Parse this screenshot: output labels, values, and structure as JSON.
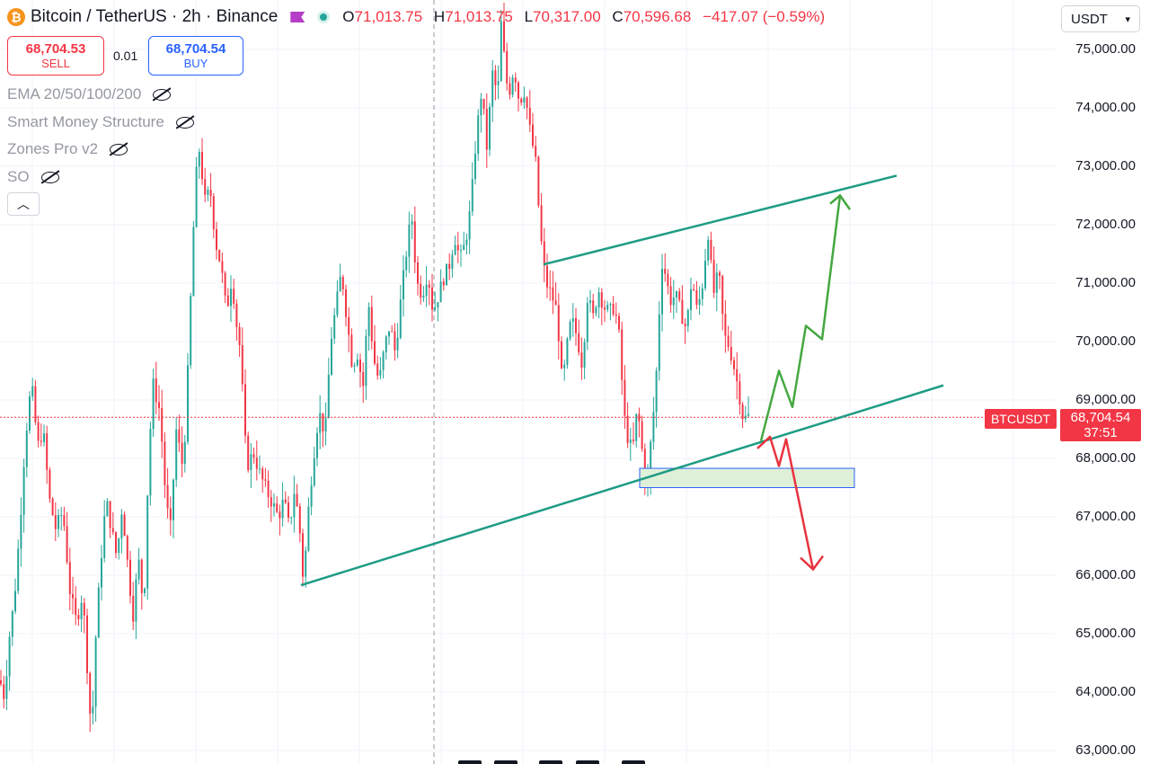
{
  "header": {
    "title": "Bitcoin / TetherUS · 2h · Binance",
    "ohlc": [
      {
        "k": "O",
        "v": "71,013.75"
      },
      {
        "k": "H",
        "v": "71,013.75"
      },
      {
        "k": "L",
        "v": "70,317.00"
      },
      {
        "k": "C",
        "v": "70,596.68"
      }
    ],
    "change": "−417.07 (−0.59%)"
  },
  "trade": {
    "sell_price": "68,704.53",
    "sell_label": "SELL",
    "quantity": "0.01",
    "buy_price": "68,704.54",
    "buy_label": "BUY"
  },
  "indicators": [
    "EMA 20/50/100/200",
    "Smart Money Structure",
    "Zones Pro v2",
    "SO"
  ],
  "currency": {
    "value": "USDT"
  },
  "price_tag": {
    "symbol": "BTCUSDT",
    "price": "68,704.54",
    "countdown": "37:51"
  },
  "colors": {
    "up": "#26a69a",
    "down": "#f23645",
    "trendline": "#1e9c84",
    "zone_fill": "#dff0d8",
    "zone_border": "#2962ff",
    "arrow_up": "#43a83f",
    "arrow_down": "#e8333f"
  },
  "chart_data": {
    "type": "candlestick",
    "ylim": [
      62800,
      75700
    ],
    "y_ticks": [
      63000,
      64000,
      65000,
      66000,
      67000,
      68000,
      69000,
      70000,
      71000,
      72000,
      73000,
      74000,
      75000
    ],
    "y_tick_labels": [
      "63,000.00",
      "64,000.00",
      "65,000.00",
      "66,000.00",
      "67,000.00",
      "68,000.00",
      "69,000.00",
      "70,000.00",
      "71,000.00",
      "72,000.00",
      "73,000.00",
      "74,000.00",
      "75,000.00"
    ],
    "current_price": 68704.54,
    "path": [
      [
        0,
        64200
      ],
      [
        5,
        63900
      ],
      [
        10,
        64900
      ],
      [
        16,
        65600
      ],
      [
        22,
        66800
      ],
      [
        28,
        68300
      ],
      [
        35,
        69300
      ],
      [
        42,
        68200
      ],
      [
        48,
        68500
      ],
      [
        55,
        67300
      ],
      [
        62,
        66800
      ],
      [
        70,
        67100
      ],
      [
        78,
        65700
      ],
      [
        85,
        65200
      ],
      [
        92,
        65700
      ],
      [
        98,
        64200
      ],
      [
        102,
        63200
      ],
      [
        106,
        64800
      ],
      [
        112,
        66200
      ],
      [
        118,
        67300
      ],
      [
        124,
        66800
      ],
      [
        130,
        66300
      ],
      [
        136,
        67200
      ],
      [
        142,
        66200
      ],
      [
        148,
        65300
      ],
      [
        154,
        66300
      ],
      [
        160,
        65400
      ],
      [
        165,
        67800
      ],
      [
        170,
        69300
      ],
      [
        178,
        68800
      ],
      [
        185,
        67200
      ],
      [
        190,
        66800
      ],
      [
        196,
        68500
      ],
      [
        204,
        67800
      ],
      [
        210,
        69800
      ],
      [
        214,
        71500
      ],
      [
        218,
        72800
      ],
      [
        222,
        73300
      ],
      [
        228,
        72400
      ],
      [
        234,
        72600
      ],
      [
        240,
        71700
      ],
      [
        246,
        71300
      ],
      [
        252,
        70500
      ],
      [
        258,
        71100
      ],
      [
        264,
        70200
      ],
      [
        268,
        69800
      ],
      [
        272,
        68400
      ],
      [
        276,
        67900
      ],
      [
        282,
        68100
      ],
      [
        290,
        67700
      ],
      [
        298,
        67400
      ],
      [
        304,
        67200
      ],
      [
        310,
        67000
      ],
      [
        316,
        67300
      ],
      [
        322,
        66800
      ],
      [
        328,
        67500
      ],
      [
        334,
        66700
      ],
      [
        338,
        65800
      ],
      [
        342,
        66900
      ],
      [
        348,
        67900
      ],
      [
        355,
        68800
      ],
      [
        362,
        68400
      ],
      [
        368,
        70000
      ],
      [
        374,
        70600
      ],
      [
        380,
        71200
      ],
      [
        386,
        70400
      ],
      [
        392,
        69600
      ],
      [
        398,
        69800
      ],
      [
        404,
        69200
      ],
      [
        410,
        70700
      ],
      [
        416,
        69700
      ],
      [
        422,
        69300
      ],
      [
        428,
        69900
      ],
      [
        434,
        70300
      ],
      [
        440,
        69800
      ],
      [
        446,
        70700
      ],
      [
        452,
        71500
      ],
      [
        458,
        72200
      ],
      [
        464,
        71000
      ],
      [
        470,
        70800
      ],
      [
        476,
        71200
      ],
      [
        482,
        70500
      ],
      [
        488,
        70800
      ],
      [
        494,
        71100
      ],
      [
        500,
        71300
      ],
      [
        506,
        71800
      ],
      [
        512,
        71400
      ],
      [
        518,
        71700
      ],
      [
        524,
        72300
      ],
      [
        530,
        73500
      ],
      [
        536,
        74300
      ],
      [
        542,
        73300
      ],
      [
        548,
        74600
      ],
      [
        554,
        74200
      ],
      [
        558,
        75500
      ],
      [
        562,
        74700
      ],
      [
        566,
        74200
      ],
      [
        572,
        74700
      ],
      [
        578,
        74100
      ],
      [
        584,
        74300
      ],
      [
        590,
        73600
      ],
      [
        596,
        73100
      ],
      [
        600,
        72200
      ],
      [
        604,
        71400
      ],
      [
        608,
        71000
      ],
      [
        614,
        70800
      ],
      [
        620,
        70500
      ],
      [
        626,
        69200
      ],
      [
        630,
        69800
      ],
      [
        636,
        70400
      ],
      [
        642,
        70100
      ],
      [
        648,
        69600
      ],
      [
        654,
        70800
      ],
      [
        660,
        70400
      ],
      [
        666,
        70900
      ],
      [
        672,
        70600
      ],
      [
        678,
        70500
      ],
      [
        684,
        70600
      ],
      [
        690,
        70000
      ],
      [
        694,
        68800
      ],
      [
        698,
        68400
      ],
      [
        704,
        68100
      ],
      [
        708,
        68700
      ],
      [
        712,
        68600
      ],
      [
        716,
        67900
      ],
      [
        720,
        67400
      ],
      [
        724,
        68200
      ],
      [
        728,
        68900
      ],
      [
        732,
        69800
      ],
      [
        736,
        71400
      ],
      [
        740,
        71200
      ],
      [
        746,
        70700
      ],
      [
        752,
        70800
      ],
      [
        758,
        70500
      ],
      [
        764,
        70200
      ],
      [
        770,
        71100
      ],
      [
        776,
        70500
      ],
      [
        782,
        71000
      ],
      [
        788,
        71900
      ],
      [
        794,
        70800
      ],
      [
        800,
        71200
      ],
      [
        806,
        70100
      ],
      [
        812,
        69900
      ],
      [
        818,
        69500
      ],
      [
        824,
        69000
      ],
      [
        828,
        68600
      ],
      [
        832,
        68800
      ],
      [
        836,
        68500
      ]
    ]
  }
}
